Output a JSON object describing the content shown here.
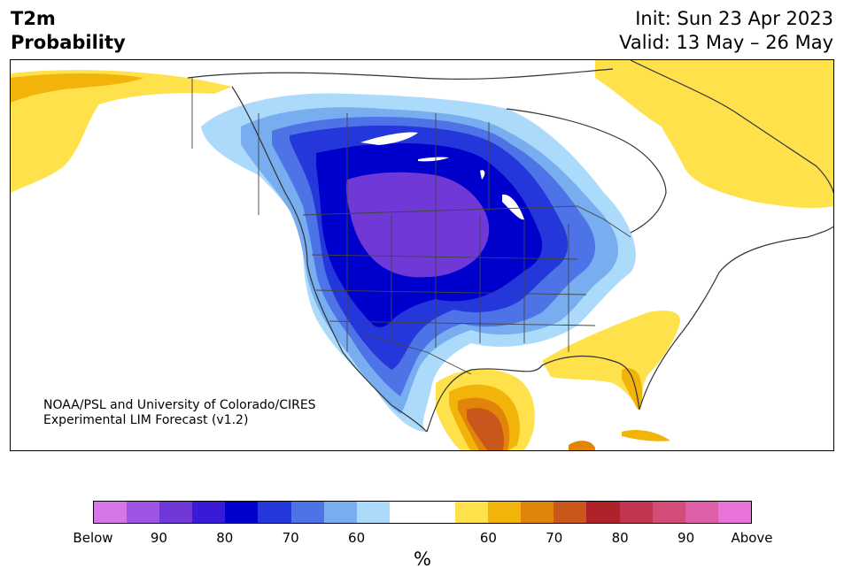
{
  "header": {
    "title_line1": "T2m",
    "title_line2": "Probability",
    "init": "Init: Sun 23 Apr 2023",
    "valid": "Valid: 13 May – 26 May"
  },
  "map": {
    "credit_line1": "NOAA/PSL and University of Colorado/CIRES",
    "credit_line2": "Experimental LIM Forecast (v1.2)"
  },
  "colorbar": {
    "colors": [
      "#d576e8",
      "#9e55e3",
      "#7038d6",
      "#3a1ad6",
      "#0000cc",
      "#2337da",
      "#4e73e6",
      "#78adf0",
      "#acdafb",
      "#ffffff",
      "#ffffff",
      "#ffe14c",
      "#f2b40a",
      "#e0850a",
      "#c9561b",
      "#b0222a",
      "#c0354f",
      "#d24d78",
      "#dd5fa8",
      "#e874d9"
    ],
    "labels": [
      "Below",
      "90",
      "80",
      "70",
      "60",
      "60",
      "70",
      "80",
      "90",
      "Above"
    ],
    "unit": "%"
  },
  "legend_meaning": {
    "below_colors": "probability of below-normal 2m temperature",
    "above_colors": "probability of above-normal 2m temperature"
  }
}
